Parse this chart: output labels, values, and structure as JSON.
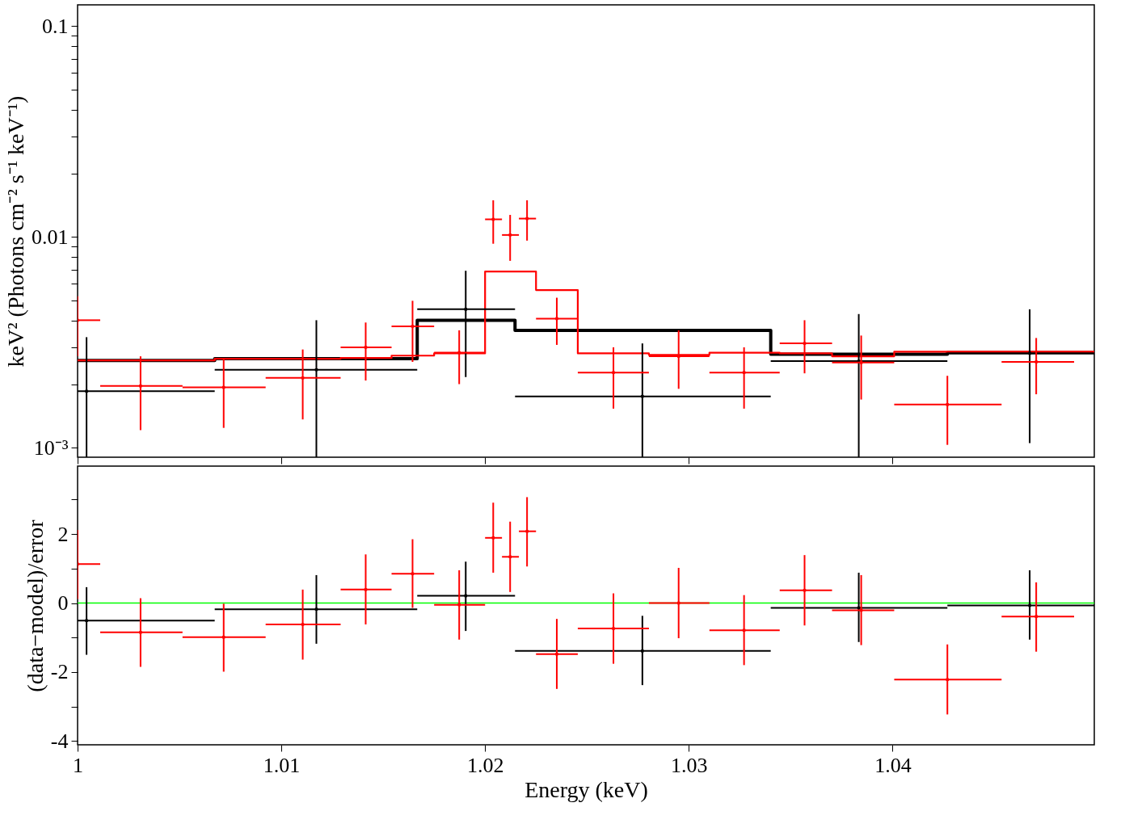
{
  "chart_data": [
    {
      "type": "scatter",
      "ylabel": "keV² (Photons cm⁻² s⁻¹ keV⁻¹)",
      "log": "y",
      "grid": false,
      "tick_labels": "y",
      "xlim": [
        1.0,
        1.0499
      ],
      "ylim": [
        0.0009,
        0.126
      ],
      "xticks": [
        1,
        1.01,
        1.02,
        1.03,
        1.04
      ],
      "yticks": [
        {
          "value": 0.001,
          "label": "10⁻³"
        },
        {
          "value": 0.002,
          "label": null
        },
        {
          "value": 0.003,
          "label": null
        },
        {
          "value": 0.004,
          "label": null
        },
        {
          "value": 0.005,
          "label": null
        },
        {
          "value": 0.006,
          "label": null
        },
        {
          "value": 0.007,
          "label": null
        },
        {
          "value": 0.008,
          "label": null
        },
        {
          "value": 0.009,
          "label": null
        },
        0.01,
        {
          "value": 0.02,
          "label": null
        },
        {
          "value": 0.03,
          "label": null
        },
        {
          "value": 0.04,
          "label": null
        },
        {
          "value": 0.05,
          "label": null
        },
        {
          "value": 0.06,
          "label": null
        },
        {
          "value": 0.07,
          "label": null
        },
        {
          "value": 0.08,
          "label": null
        },
        {
          "value": 0.09,
          "label": null
        },
        0.1
      ],
      "series": [
        {
          "type": "step",
          "color": "#000000",
          "x": [
            1.0,
            1.00673,
            1.01667,
            1.02147,
            1.03402,
            1.04269,
            1.0499
          ],
          "values": [
            0.00259,
            0.00264,
            0.00402,
            0.0036,
            0.00277,
            0.00282,
            0.00282
          ]
        },
        {
          "type": "step",
          "color": "#ff0000",
          "x": [
            1.0,
            1.00673,
            1.01291,
            1.01541,
            1.0175,
            1.02,
            1.0225,
            1.02455,
            1.02804,
            1.03101,
            1.03446,
            1.03703,
            1.04008,
            1.0499
          ],
          "values": [
            0.00259,
            0.00264,
            0.00266,
            0.00273,
            0.0028,
            0.00684,
            0.00559,
            0.0028,
            0.00275,
            0.00282,
            0.0028,
            0.00271,
            0.00285,
            0.00285
          ]
        },
        {
          "color": "#000000",
          "x": [
            1.00044,
            1.01172,
            1.01905,
            1.02772,
            1.03834,
            1.04673
          ],
          "values": [
            0.00185,
            0.00234,
            0.00453,
            0.00175,
            0.00257,
            0.0028
          ],
          "xerrors": [
            [
              1.0,
              1.00673
            ],
            [
              1.00673,
              1.01667
            ],
            [
              1.01667,
              1.02147
            ],
            [
              1.02147,
              1.03402
            ],
            [
              1.03402,
              1.04269
            ],
            [
              1.04269,
              1.0499
            ]
          ],
          "errors": [
            [
              0.0009,
              0.00334
            ],
            [
              0.0009,
              0.00402
            ],
            [
              0.00216,
              0.0069
            ],
            [
              0.0009,
              0.00312
            ],
            [
              0.0009,
              0.0043
            ],
            [
              0.00105,
              0.00453
            ]
          ]
        },
        {
          "color": "#ff0000",
          "x": [
            1.0,
            1.00309,
            1.00717,
            1.01105,
            1.01414,
            1.01644,
            1.01873,
            1.0204,
            1.02123,
            1.02206,
            1.02352,
            1.0263,
            1.0295,
            1.03271,
            1.03568,
            1.03846,
            1.04269,
            1.04705
          ],
          "values": [
            0.00402,
            0.00196,
            0.00193,
            0.00214,
            0.00299,
            0.00376,
            0.00282,
            0.0121,
            0.0102,
            0.0122,
            0.00409,
            0.00227,
            0.00271,
            0.00227,
            0.00312,
            0.00253,
            0.0016,
            0.00255
          ],
          "xerrors": [
            [
              1.0,
              1.00111
            ],
            [
              1.00111,
              1.00515
            ],
            [
              1.00515,
              1.00923
            ],
            [
              1.00923,
              1.01291
            ],
            [
              1.01291,
              1.01541
            ],
            [
              1.01541,
              1.0175
            ],
            [
              1.0175,
              1.02
            ],
            [
              1.02,
              1.02083
            ],
            [
              1.02083,
              1.02166
            ],
            [
              1.02166,
              1.0225
            ],
            [
              1.0225,
              1.02455
            ],
            [
              1.02455,
              1.02804
            ],
            [
              1.02804,
              1.03101
            ],
            [
              1.03101,
              1.03446
            ],
            [
              1.03446,
              1.03703
            ],
            [
              1.03703,
              1.04008
            ],
            [
              1.04008,
              1.04535
            ],
            [
              1.04535,
              1.04891
            ]
          ],
          "errors": [
            [
              0.00271,
              0.00522
            ],
            [
              0.00121,
              0.00271
            ],
            [
              0.00124,
              0.00264
            ],
            [
              0.00136,
              0.00292
            ],
            [
              0.00208,
              0.00392
            ],
            [
              0.00255,
              0.00497
            ],
            [
              0.002,
              0.0036
            ],
            [
              0.00927,
              0.0149
            ],
            [
              0.00769,
              0.0127
            ],
            [
              0.00959,
              0.0149
            ],
            [
              0.00307,
              0.00514
            ],
            [
              0.00153,
              0.00299
            ],
            [
              0.0019,
              0.0036
            ],
            [
              0.00153,
              0.00299
            ],
            [
              0.00225,
              0.00402
            ],
            [
              0.00169,
              0.0034
            ],
            [
              0.00103,
              0.00219
            ],
            [
              0.00179,
              0.00331
            ]
          ]
        }
      ]
    },
    {
      "type": "scatter",
      "xlabel": "Energy (keV)",
      "ylabel": "(data−model)/error",
      "grid": false,
      "xlim": [
        1.0,
        1.0499
      ],
      "ylim": [
        -4.11,
        3.97
      ],
      "xticks": [
        1,
        1.01,
        1.02,
        1.03,
        1.04
      ],
      "yticks": [
        -4,
        {
          "value": -3,
          "label": null
        },
        -2,
        {
          "value": -1,
          "label": null
        },
        0,
        {
          "value": 1,
          "label": null
        },
        2,
        {
          "value": 3,
          "label": null
        }
      ],
      "ref_lines": [
        {
          "axis": "y",
          "value": 0,
          "color": "#00ff00"
        }
      ],
      "series": [
        {
          "color": "#000000",
          "x": [
            1.00044,
            1.01172,
            1.01905,
            1.02772,
            1.03834,
            1.04673
          ],
          "values": [
            -0.51,
            -0.18,
            0.21,
            -1.39,
            -0.14,
            -0.07
          ],
          "xerrors": [
            [
              1.0,
              1.00673
            ],
            [
              1.00673,
              1.01667
            ],
            [
              1.01667,
              1.02147
            ],
            [
              1.02147,
              1.03402
            ],
            [
              1.03402,
              1.04269
            ],
            [
              1.04269,
              1.0499
            ]
          ],
          "errors": [
            [
              -1.5,
              0.46
            ],
            [
              -1.18,
              0.81
            ],
            [
              -0.81,
              1.2
            ],
            [
              -2.38,
              -0.37
            ],
            [
              -1.13,
              0.88
            ],
            [
              -1.06,
              0.95
            ]
          ]
        },
        {
          "color": "#ff0000",
          "x": [
            1.0,
            1.00309,
            1.00717,
            1.01105,
            1.01414,
            1.01644,
            1.01873,
            1.0204,
            1.02123,
            1.02206,
            1.02352,
            1.0263,
            1.0295,
            1.03271,
            1.03568,
            1.03846,
            1.04269,
            1.04705
          ],
          "values": [
            1.13,
            -0.85,
            -0.99,
            -0.62,
            0.39,
            0.85,
            -0.05,
            1.89,
            1.34,
            2.08,
            -1.48,
            -0.74,
            0,
            -0.79,
            0.37,
            -0.21,
            -2.22,
            -0.39
          ],
          "xerrors": [
            [
              1.0,
              1.00111
            ],
            [
              1.00111,
              1.00515
            ],
            [
              1.00515,
              1.00923
            ],
            [
              1.00923,
              1.01291
            ],
            [
              1.01291,
              1.01541
            ],
            [
              1.01541,
              1.0175
            ],
            [
              1.0175,
              1.02
            ],
            [
              1.02,
              1.02083
            ],
            [
              1.02083,
              1.02166
            ],
            [
              1.02166,
              1.0225
            ],
            [
              1.0225,
              1.02455
            ],
            [
              1.02455,
              1.02804
            ],
            [
              1.02804,
              1.03101
            ],
            [
              1.03101,
              1.03446
            ],
            [
              1.03446,
              1.03703
            ],
            [
              1.03703,
              1.04008
            ],
            [
              1.04008,
              1.04535
            ],
            [
              1.04535,
              1.04891
            ]
          ],
          "errors": [
            [
              0.12,
              2.12
            ],
            [
              -1.85,
              0.14
            ],
            [
              -1.99,
              -0.02
            ],
            [
              -1.64,
              0.39
            ],
            [
              -0.62,
              1.41
            ],
            [
              -0.14,
              1.85
            ],
            [
              -1.06,
              0.95
            ],
            [
              0.88,
              2.91
            ],
            [
              0.32,
              2.36
            ],
            [
              1.06,
              3.07
            ],
            [
              -2.49,
              -0.46
            ],
            [
              -1.76,
              0.28
            ],
            [
              -1.02,
              1.02
            ],
            [
              -1.8,
              0.23
            ],
            [
              -0.65,
              1.39
            ],
            [
              -1.22,
              0.81
            ],
            [
              -3.23,
              -1.2
            ],
            [
              -1.41,
              0.6
            ]
          ]
        }
      ]
    }
  ]
}
